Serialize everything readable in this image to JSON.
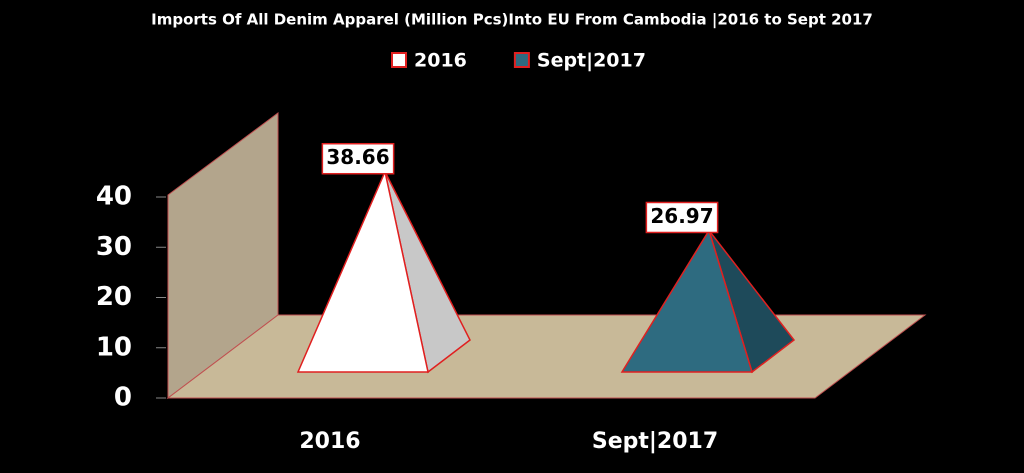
{
  "chart_data": {
    "type": "pyramid",
    "title": "Imports Of All Denim Apparel (Million Pcs)Into EU From Cambodia |2016 to Sept 2017",
    "categories": [
      "2016",
      "Sept|2017"
    ],
    "values": [
      38.66,
      26.97
    ],
    "colors": [
      "#ffffff",
      "#2e6b80"
    ],
    "ylim": [
      0,
      40
    ],
    "yticks": [
      0,
      10,
      20,
      30,
      40
    ],
    "legend": "top"
  }
}
